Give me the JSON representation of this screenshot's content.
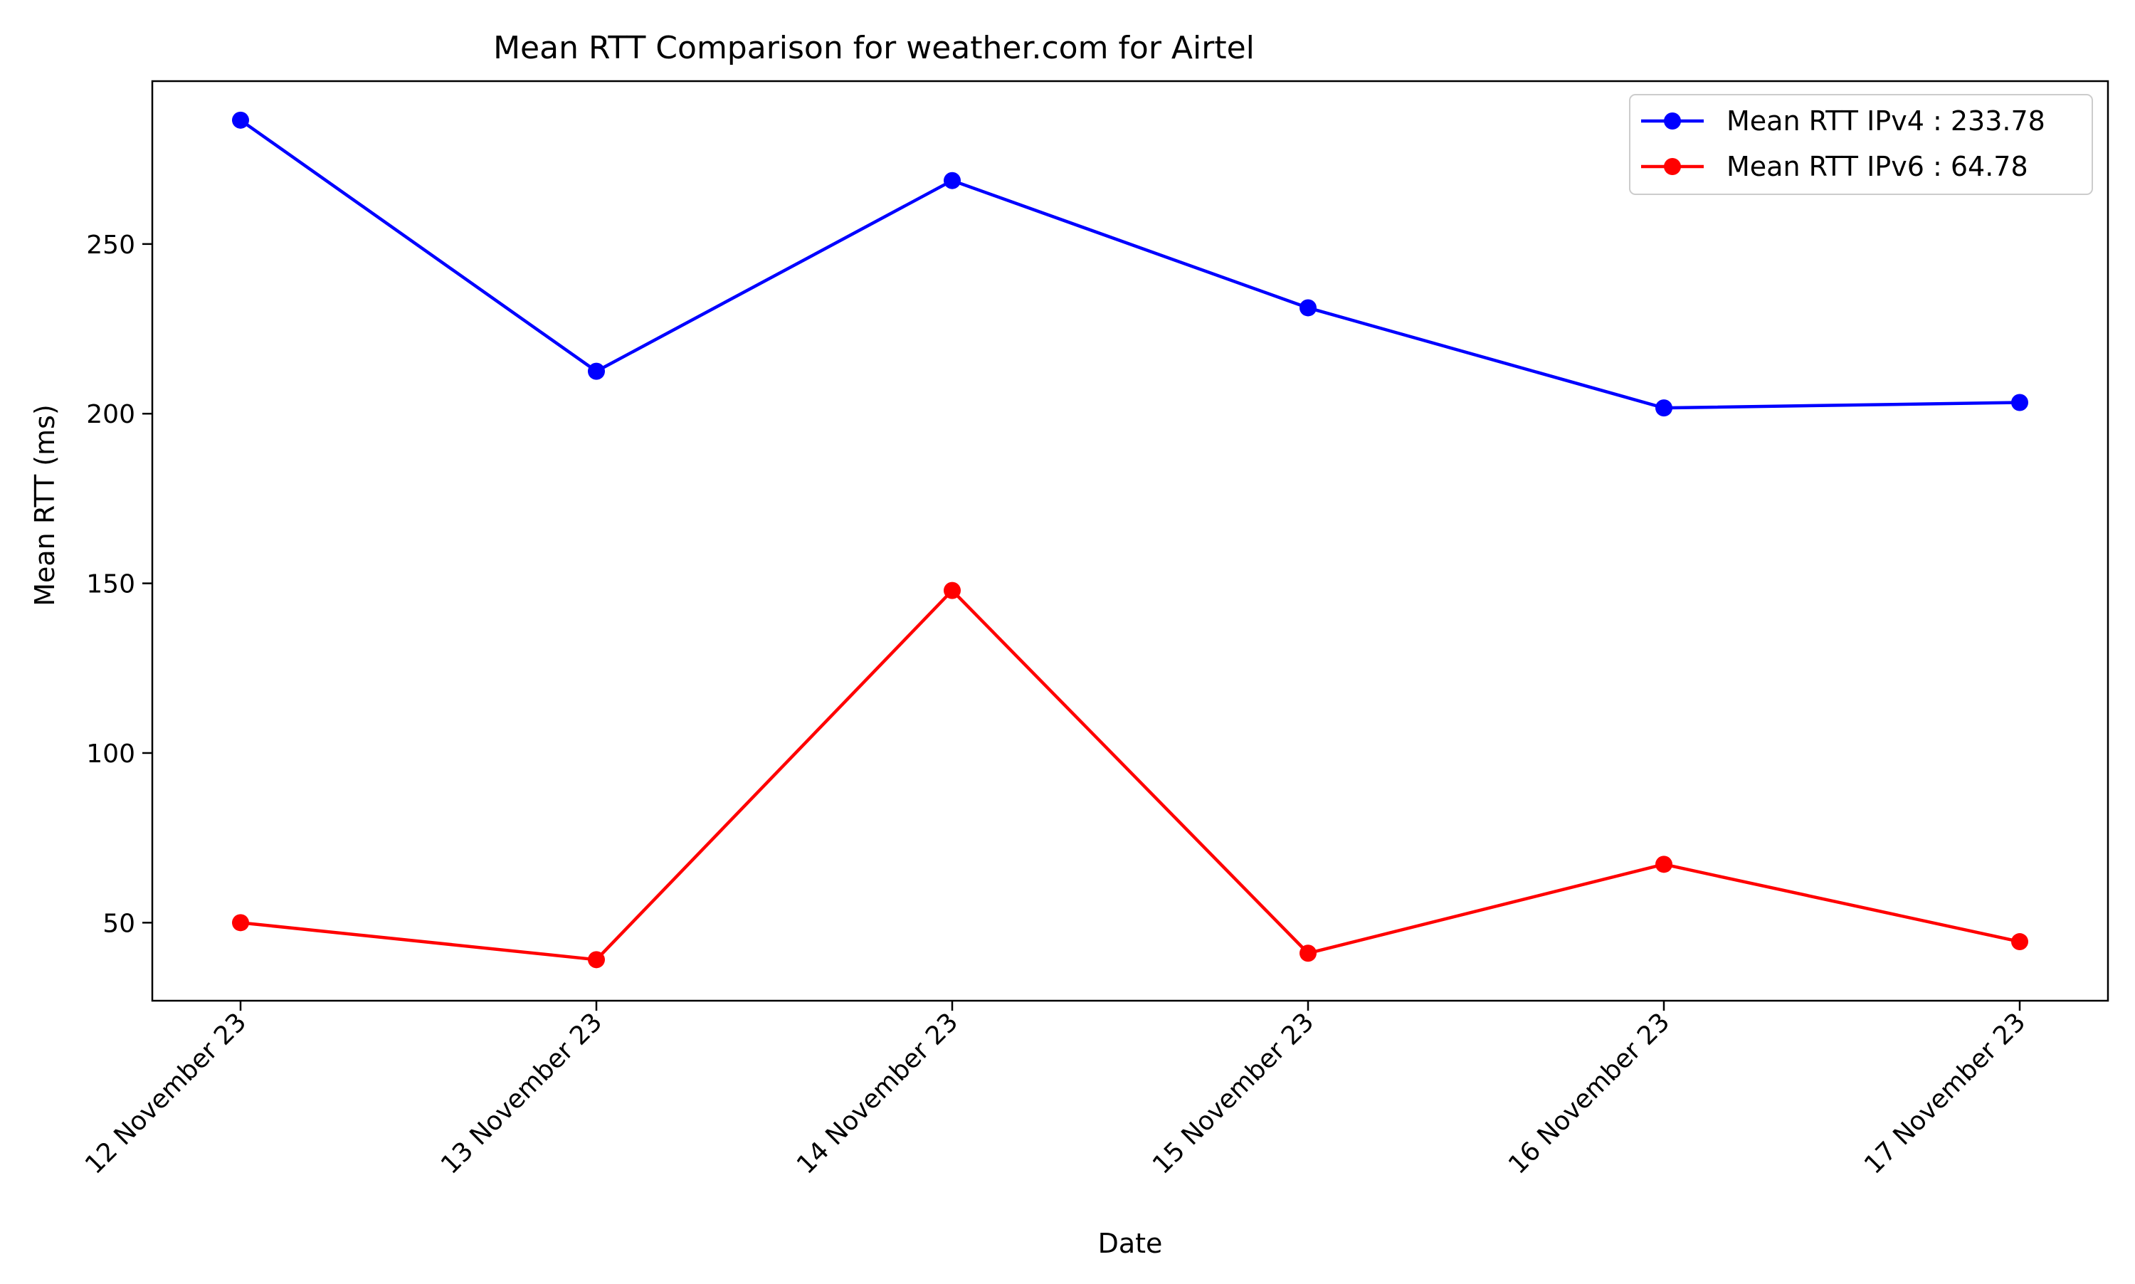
{
  "chart_data": {
    "type": "line",
    "title": "Mean RTT Comparison for weather.com for Airtel",
    "xlabel": "Date",
    "ylabel": "Mean RTT (ms)",
    "categories": [
      "12 November 23",
      "13 November 23",
      "14 November 23",
      "15 November 23",
      "16 November 23",
      "17 November 23"
    ],
    "series": [
      {
        "name": "Mean RTT IPv4 : 233.78",
        "color": "#0000ff",
        "values": [
          286.5,
          212.5,
          268.7,
          231.2,
          201.7,
          203.3
        ]
      },
      {
        "name": "Mean RTT IPv6 : 64.78",
        "color": "#ff0000",
        "values": [
          50.0,
          39.1,
          147.9,
          41.0,
          67.2,
          44.4
        ]
      }
    ],
    "yticks": [
      50,
      100,
      150,
      200,
      250
    ],
    "ylim": [
      27,
      298
    ],
    "grid": false,
    "legend_position": "top-right"
  }
}
